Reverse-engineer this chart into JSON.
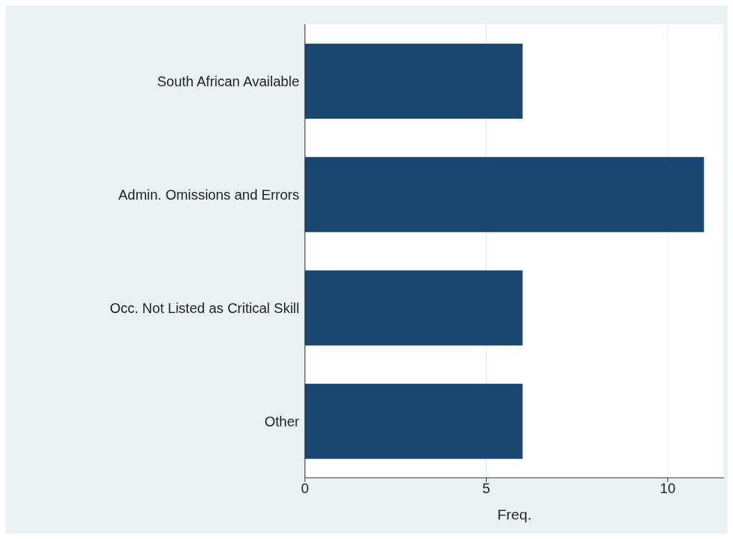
{
  "chart_data": {
    "type": "bar",
    "orientation": "horizontal",
    "xlabel": "Freq.",
    "categories": [
      "South African Available",
      "Admin. Omissions and Errors",
      "Occ. Not Listed as Critical Skill",
      "Other"
    ],
    "values": [
      6,
      11,
      6,
      6
    ],
    "color": "#1a476f",
    "xlim": [
      0,
      11.55
    ],
    "xticks": [
      0,
      5,
      10
    ],
    "grid": "x"
  }
}
